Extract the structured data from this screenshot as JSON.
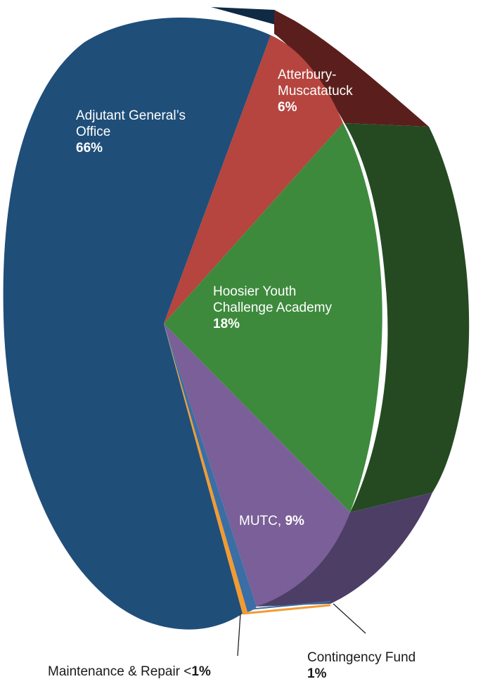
{
  "chart_data": {
    "type": "pie",
    "title": "",
    "slices": [
      {
        "label_lines": [
          "Adjutant General’s",
          "Office"
        ],
        "percent_text": "66%",
        "value": 66,
        "color": "#1f4e79"
      },
      {
        "label_lines": [
          "Atterbury-",
          "Muscatatuck"
        ],
        "percent_text": "6%",
        "value": 6,
        "color": "#b5453e"
      },
      {
        "label_lines": [
          "Hoosier Youth",
          "Challenge Academy"
        ],
        "percent_text": "18%",
        "value": 18,
        "color": "#3d8a3d"
      },
      {
        "label_lines": [
          "MUTC, "
        ],
        "percent_text": "9%",
        "value": 9,
        "color": "#7a5f98"
      },
      {
        "label_lines": [
          "Contingency Fund"
        ],
        "percent_text": "1%",
        "value": 1,
        "color": "#3a6ea5"
      },
      {
        "label_lines": [
          "Maintenance & Repair <"
        ],
        "percent_text": "1%",
        "value": 0.5,
        "color": "#f39b2f"
      }
    ],
    "style": "3d-exploded-pie"
  }
}
